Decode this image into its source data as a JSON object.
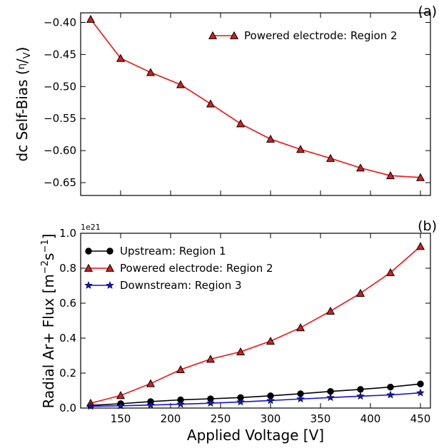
{
  "chart_data": [
    {
      "type": "line",
      "panel_label": "(a)",
      "ylabel": "dc Self-Bias (η/V)",
      "x": [
        120,
        150,
        180,
        210,
        240,
        270,
        300,
        330,
        360,
        390,
        420,
        450
      ],
      "xlim": [
        110,
        460
      ],
      "ylim": [
        -0.67,
        -0.385
      ],
      "yticks": [
        -0.4,
        -0.45,
        -0.5,
        -0.55,
        -0.6,
        -0.65
      ],
      "ytick_labels": [
        "−0.40",
        "−0.45",
        "−0.50",
        "−0.55",
        "−0.60",
        "−0.65"
      ],
      "legend_position": "top-right",
      "series": [
        {
          "name": "Powered electrode: Region 2",
          "color": "#ee1111",
          "marker": "triangle",
          "values": [
            -0.395,
            -0.456,
            -0.478,
            -0.497,
            -0.527,
            -0.558,
            -0.582,
            -0.598,
            -0.612,
            -0.627,
            -0.639,
            -0.642
          ]
        }
      ]
    },
    {
      "type": "line",
      "panel_label": "(b)",
      "ylabel": "Radial Ar+ Flux [m⁻²s⁻¹]",
      "xlabel": "Applied Voltage [V]",
      "offset_label": "1e21",
      "x": [
        120,
        150,
        180,
        210,
        240,
        270,
        300,
        330,
        360,
        390,
        420,
        450
      ],
      "xlim": [
        110,
        460
      ],
      "ylim": [
        0,
        1.0
      ],
      "xticks": [
        150,
        200,
        250,
        300,
        350,
        400,
        450
      ],
      "xtick_labels": [
        "150",
        "200",
        "250",
        "300",
        "350",
        "400",
        "450"
      ],
      "yticks": [
        0.0,
        0.2,
        0.4,
        0.6,
        0.8,
        1.0
      ],
      "ytick_labels": [
        "0.0",
        "0.2",
        "0.4",
        "0.6",
        "0.8",
        "1.0"
      ],
      "legend_position": "top-left",
      "series": [
        {
          "name": "Upstream: Region 1",
          "color": "#000000",
          "marker": "circle",
          "values": [
            0.015,
            0.025,
            0.037,
            0.047,
            0.053,
            0.06,
            0.07,
            0.082,
            0.095,
            0.107,
            0.12,
            0.138
          ]
        },
        {
          "name": "Powered electrode: Region 2",
          "color": "#ee1111",
          "marker": "triangle",
          "values": [
            0.028,
            0.072,
            0.14,
            0.22,
            0.28,
            0.322,
            0.383,
            0.46,
            0.555,
            0.657,
            0.775,
            0.925
          ]
        },
        {
          "name": "Downstream: Region 3",
          "color": "#1111dd",
          "marker": "star",
          "values": [
            0.01,
            0.013,
            0.017,
            0.022,
            0.028,
            0.035,
            0.043,
            0.052,
            0.06,
            0.068,
            0.075,
            0.087
          ]
        }
      ]
    }
  ]
}
